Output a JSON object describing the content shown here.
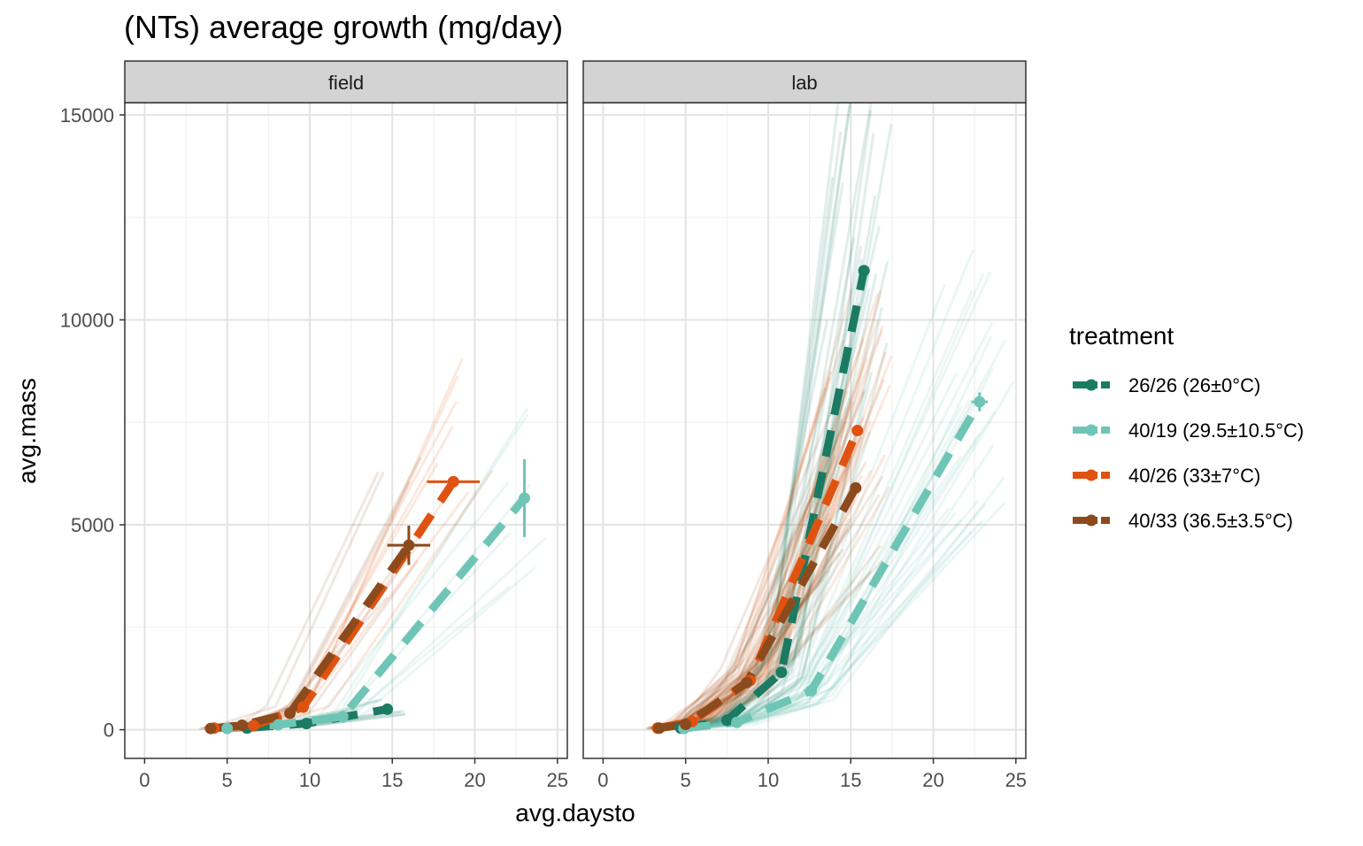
{
  "chart_data": {
    "type": "line",
    "title": "(NTs) average growth (mg/day)",
    "xlabel": "avg.daysto",
    "ylabel": "avg.mass",
    "xlim": [
      -1.2,
      25.6
    ],
    "ylim": [
      -700,
      15300
    ],
    "x_ticks": [
      0,
      5,
      10,
      15,
      20,
      25
    ],
    "y_ticks": [
      0,
      5000,
      10000,
      15000
    ],
    "x_tick_labels": [
      "0",
      "5",
      "10",
      "15",
      "20",
      "25"
    ],
    "y_tick_labels": [
      "0",
      "5000",
      "10000",
      "15000"
    ],
    "grid": true,
    "legend": {
      "title": "treatment",
      "position": "right",
      "entries": [
        {
          "label": "26/26 (26±0°C)",
          "color": "#1b7a62"
        },
        {
          "label": "40/19 (29.5±10.5°C)",
          "color": "#6fc5b5"
        },
        {
          "label": "40/26 (33±7°C)",
          "color": "#e0520f"
        },
        {
          "label": "40/33 (36.5±3.5°C)",
          "color": "#8c4a1d"
        }
      ]
    },
    "panels": [
      {
        "label": "field",
        "series": [
          {
            "name": "26/26 (26±0°C)",
            "x": [
              6.2,
              9.8,
              14.7
            ],
            "y": [
              40,
              150,
              500
            ]
          },
          {
            "name": "40/19 (29.5±10.5°C)",
            "x": [
              5.0,
              8.1,
              12.0,
              23.0
            ],
            "y": [
              30,
              120,
              320,
              5650
            ],
            "error_y": [
              0,
              0,
              0,
              950
            ]
          },
          {
            "name": "40/26 (33±7°C)",
            "x": [
              4.2,
              6.6,
              9.6,
              18.7
            ],
            "y": [
              40,
              100,
              550,
              6050
            ],
            "error_x": [
              0,
              0,
              0,
              1.6
            ]
          },
          {
            "name": "40/33 (36.5±3.5°C)",
            "x": [
              4.0,
              5.9,
              8.8,
              16.0
            ],
            "y": [
              30,
              110,
              400,
              4500
            ],
            "error_x": [
              0,
              0,
              0,
              1.3
            ],
            "error_y": [
              0,
              0,
              0,
              480
            ]
          }
        ]
      },
      {
        "label": "lab",
        "series": [
          {
            "name": "26/26 (26±0°C)",
            "x": [
              4.7,
              7.5,
              10.8,
              15.8
            ],
            "y": [
              40,
              230,
              1400,
              11200
            ]
          },
          {
            "name": "40/19 (29.5±10.5°C)",
            "x": [
              4.9,
              8.1,
              12.6,
              22.8
            ],
            "y": [
              30,
              180,
              950,
              8000
            ],
            "error_x": [
              0,
              0,
              0,
              0.5
            ],
            "error_y": [
              0,
              0,
              0,
              230
            ]
          },
          {
            "name": "40/26 (33±7°C)",
            "x": [
              3.3,
              5.4,
              8.9,
              15.4
            ],
            "y": [
              40,
              200,
              1200,
              7300
            ]
          },
          {
            "name": "40/33 (36.5±3.5°C)",
            "x": [
              3.4,
              5.0,
              8.7,
              15.3
            ],
            "y": [
              40,
              130,
              1150,
              5900
            ]
          }
        ]
      }
    ]
  }
}
